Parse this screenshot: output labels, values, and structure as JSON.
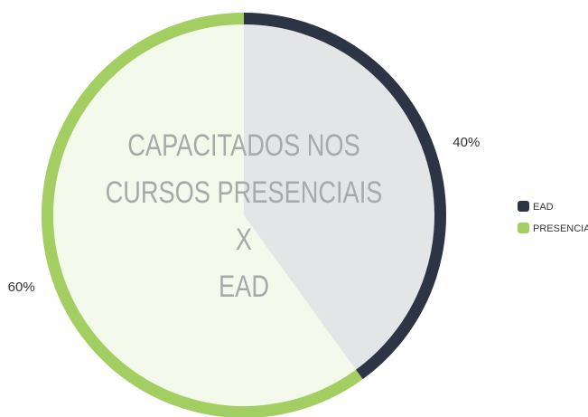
{
  "chart_data": {
    "type": "pie",
    "title": [
      "CAPACITADOS NOS",
      "CURSOS PRESENCIAIS",
      "X",
      "EAD"
    ],
    "categories": [
      "EAD",
      "PRESENCIAIS"
    ],
    "values": [
      40,
      60
    ],
    "value_labels": [
      "40%",
      "60%"
    ],
    "colors": [
      "#2d3446",
      "#a3cf62"
    ],
    "legend": "right"
  }
}
